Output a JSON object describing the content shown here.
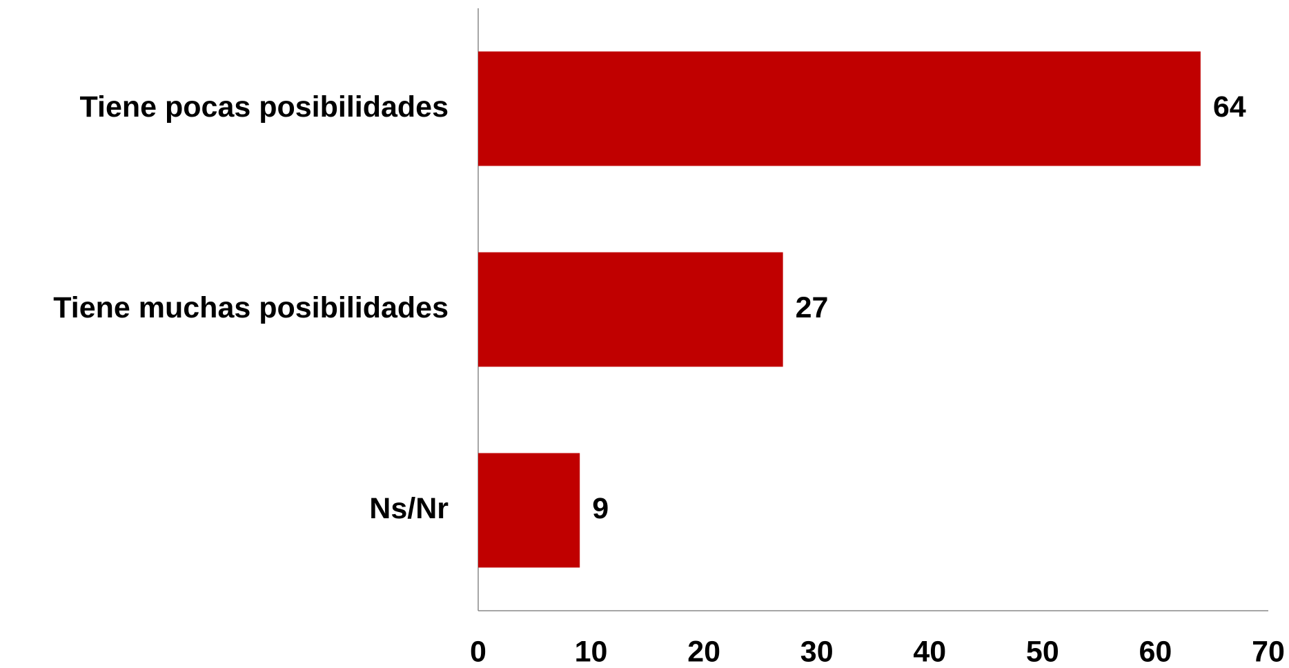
{
  "chart_data": {
    "type": "bar",
    "orientation": "horizontal",
    "categories": [
      "Tiene pocas posibilidades",
      "Tiene muchas posibilidades",
      "Ns/Nr"
    ],
    "values": [
      64,
      27,
      9
    ],
    "color": "#c00000",
    "xlim": [
      0,
      70
    ],
    "xticks": [
      0,
      10,
      20,
      30,
      40,
      50,
      60,
      70
    ],
    "grid": false
  }
}
